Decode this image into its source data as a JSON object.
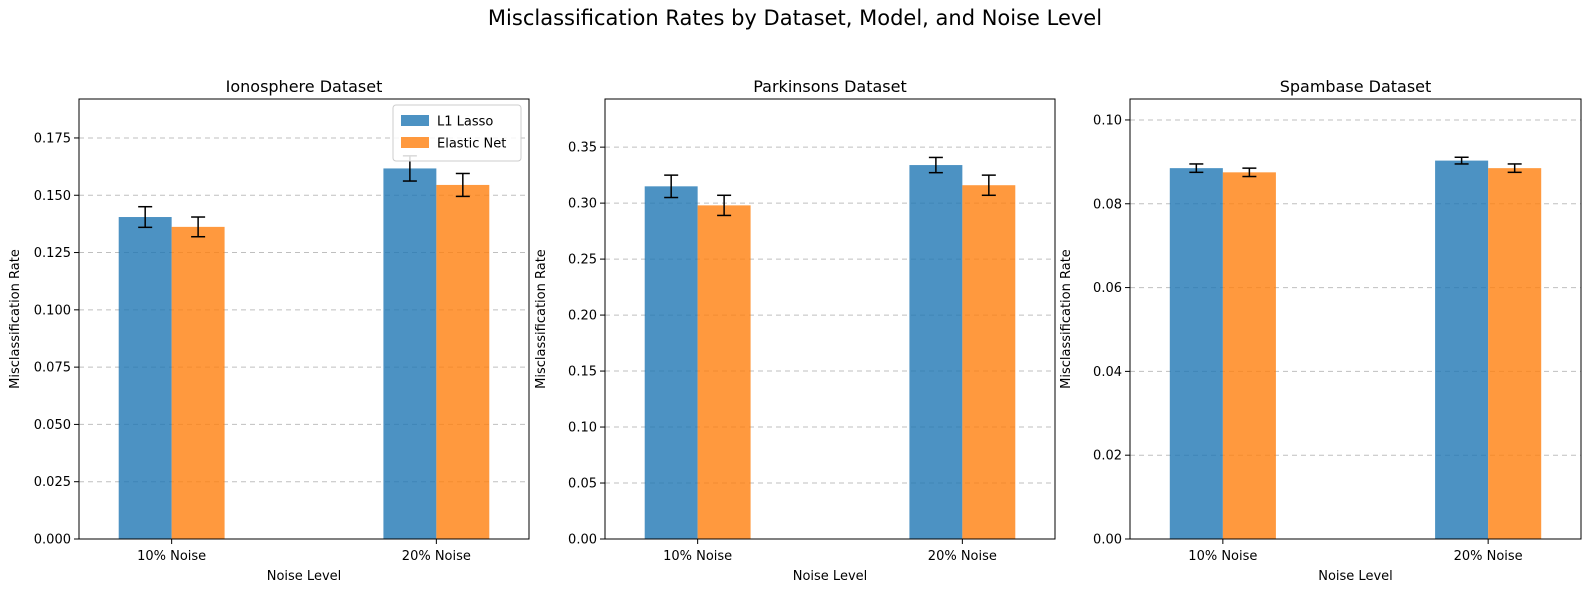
{
  "figure": {
    "title": "Misclassification Rates by Dataset, Model, and Noise Level"
  },
  "colors": {
    "l1_lasso": "#1f77b4",
    "elastic_net": "#ff7f0e",
    "grid": "#b0b0b0",
    "error_bar": "#000000"
  },
  "chart_data": [
    {
      "type": "bar",
      "title": "Ionosphere Dataset",
      "xlabel": "Noise Level",
      "ylabel": "Misclassification Rate",
      "categories": [
        "10% Noise",
        "20% Noise"
      ],
      "series": [
        {
          "name": "L1 Lasso",
          "values": [
            0.1405,
            0.1617
          ],
          "errors": [
            0.0045,
            0.0055
          ]
        },
        {
          "name": "Elastic Net",
          "values": [
            0.1362,
            0.1545
          ],
          "errors": [
            0.0043,
            0.005
          ]
        }
      ],
      "ylim": [
        0,
        0.192
      ],
      "yticks": [
        0.0,
        0.025,
        0.05,
        0.075,
        0.1,
        0.125,
        0.15,
        0.175
      ],
      "ytick_labels": [
        "0.000",
        "0.025",
        "0.050",
        "0.075",
        "0.100",
        "0.125",
        "0.150",
        "0.175"
      ],
      "grid": true,
      "legend": "top-right"
    },
    {
      "type": "bar",
      "title": "Parkinsons Dataset",
      "xlabel": "Noise Level",
      "ylabel": "Misclassification Rate",
      "categories": [
        "10% Noise",
        "20% Noise"
      ],
      "series": [
        {
          "name": "L1 Lasso",
          "values": [
            0.315,
            0.334
          ],
          "errors": [
            0.01,
            0.0068
          ]
        },
        {
          "name": "Elastic Net",
          "values": [
            0.298,
            0.316
          ],
          "errors": [
            0.009,
            0.009
          ]
        }
      ],
      "ylim": [
        0,
        0.393
      ],
      "yticks": [
        0.0,
        0.05,
        0.1,
        0.15,
        0.2,
        0.25,
        0.3,
        0.35
      ],
      "ytick_labels": [
        "0.00",
        "0.05",
        "0.10",
        "0.15",
        "0.20",
        "0.25",
        "0.30",
        "0.35"
      ],
      "grid": true
    },
    {
      "type": "bar",
      "title": "Spambase Dataset",
      "xlabel": "Noise Level",
      "ylabel": "Misclassification Rate",
      "categories": [
        "10% Noise",
        "20% Noise"
      ],
      "series": [
        {
          "name": "L1 Lasso",
          "values": [
            0.0885,
            0.0903
          ],
          "errors": [
            0.001,
            0.0008
          ]
        },
        {
          "name": "Elastic Net",
          "values": [
            0.0875,
            0.0885
          ],
          "errors": [
            0.001,
            0.001
          ]
        }
      ],
      "ylim": [
        0,
        0.105
      ],
      "yticks": [
        0.0,
        0.02,
        0.04,
        0.06,
        0.08,
        0.1
      ],
      "ytick_labels": [
        "0.00",
        "0.02",
        "0.04",
        "0.06",
        "0.08",
        "0.10"
      ],
      "grid": true
    }
  ]
}
